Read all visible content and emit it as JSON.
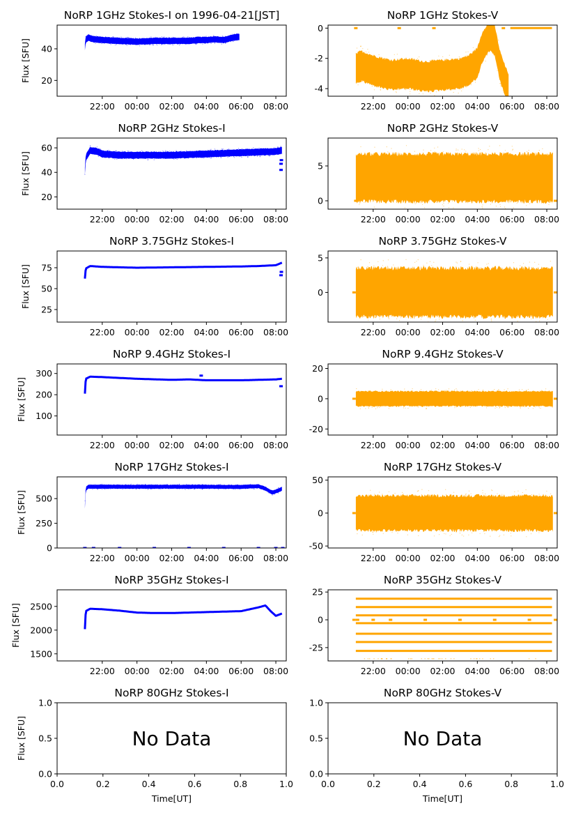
{
  "figure_title": "NoRP 1GHz Stokes-I on 1996-04-21[JST]",
  "time_ticks": [
    "22:00",
    "00:00",
    "02:00",
    "04:00",
    "06:00",
    "08:00"
  ],
  "colors": {
    "stokes_i": "#0000ff",
    "stokes_v": "#ffa500",
    "axes": "#000000"
  },
  "chart_data": [
    {
      "id": "1ghz-i",
      "type": "scatter",
      "title": "NoRP 1GHz Stokes-I on 1996-04-21[JST]",
      "ylabel": "Flux [SFU]",
      "xlabel": "",
      "xlim_hours": [
        19.4,
        32.6
      ],
      "ylim": [
        10,
        55
      ],
      "yticks": [
        20,
        40
      ],
      "color": "#0000ff",
      "series": [
        {
          "segments": [
            {
              "x": [
                21.0,
                21.05,
                21.2,
                21.5,
                22.0,
                23.0,
                24.0,
                25.0,
                26.0,
                27.0,
                27.5,
                28.0,
                28.5,
                29.0,
                29.5,
                29.9
              ],
              "y": [
                41,
                46,
                47,
                46,
                45.5,
                45,
                44.5,
                45,
                45,
                45,
                45.5,
                45.5,
                46,
                45.5,
                47,
                47.5
              ],
              "spread": 1.8
            }
          ]
        }
      ]
    },
    {
      "id": "1ghz-v",
      "type": "scatter",
      "title": "NoRP 1GHz Stokes-V",
      "ylabel": "",
      "xlabel": "",
      "xlim_hours": [
        19.4,
        32.6
      ],
      "ylim": [
        -4.5,
        0.2
      ],
      "yticks": [
        -4,
        -2,
        0
      ],
      "color": "#ffa500",
      "series": [
        {
          "segments": [
            {
              "x": [
                21.0,
                21.3,
                22.0,
                23.0,
                24.0,
                25.0,
                26.0,
                27.0,
                27.5,
                28.0,
                28.3,
                28.7,
                29.0,
                29.3,
                29.6,
                29.8
              ],
              "y": [
                -2.7,
                -2.5,
                -2.8,
                -3.1,
                -3.0,
                -3.2,
                -3.1,
                -3.0,
                -2.8,
                -2.3,
                -1.2,
                -0.5,
                -0.8,
                -2.5,
                -3.5,
                -4.0
              ],
              "spread": 0.9
            },
            {
              "x": [
                29.9,
                32.3
              ],
              "y": [
                0,
                0
              ],
              "spread": 0.04
            },
            {
              "points": [
                [
                  21.0,
                  0
                ],
                [
                  23.5,
                  0
                ],
                [
                  25.5,
                  0
                ],
                [
                  29.5,
                  0
                ]
              ]
            }
          ]
        }
      ]
    },
    {
      "id": "2ghz-i",
      "type": "scatter",
      "title": "NoRP 2GHz Stokes-I",
      "ylabel": "Flux [SFU]",
      "xlabel": "",
      "xlim_hours": [
        19.4,
        32.6
      ],
      "ylim": [
        10,
        68
      ],
      "yticks": [
        20,
        40,
        60
      ],
      "color": "#0000ff",
      "series": [
        {
          "segments": [
            {
              "x": [
                21.0,
                21.05,
                21.3,
                21.7,
                22.0,
                23.0,
                24.0,
                26.0,
                28.0,
                30.0,
                31.0,
                32.0,
                32.35
              ],
              "y": [
                41,
                52,
                58,
                57,
                55,
                54,
                54,
                54,
                55,
                56,
                56.5,
                57,
                58
              ],
              "spread": 2.5
            },
            {
              "points": [
                [
                  32.3,
                  42
                ],
                [
                  32.3,
                  47
                ],
                [
                  32.32,
                  50
                ]
              ]
            }
          ]
        }
      ]
    },
    {
      "id": "2ghz-v",
      "type": "scatter",
      "title": "NoRP 2GHz Stokes-V",
      "ylabel": "",
      "xlabel": "",
      "xlim_hours": [
        19.4,
        32.6
      ],
      "ylim": [
        -1.2,
        9
      ],
      "yticks": [
        0,
        5
      ],
      "color": "#ffa500",
      "series": [
        {
          "segments": [
            {
              "x": [
                21.0,
                32.35
              ],
              "y": [
                3.3,
                3.3
              ],
              "spread": 3.1
            },
            {
              "points": [
                [
                  21.0,
                  0
                ],
                [
                  23.5,
                  0
                ],
                [
                  25.5,
                  0
                ],
                [
                  27.5,
                  0
                ],
                [
                  29.5,
                  0
                ],
                [
                  32.5,
                  0
                ]
              ]
            }
          ]
        }
      ]
    },
    {
      "id": "375ghz-i",
      "type": "scatter",
      "title": "NoRP 3.75GHz Stokes-I",
      "ylabel": "Flux [SFU]",
      "xlabel": "",
      "xlim_hours": [
        19.4,
        32.6
      ],
      "ylim": [
        10,
        95
      ],
      "yticks": [
        25,
        50,
        75
      ],
      "color": "#0000ff",
      "series": [
        {
          "segments": [
            {
              "x": [
                21.0,
                21.05,
                21.3,
                22.0,
                24.0,
                26.0,
                28.0,
                30.0,
                31.0,
                32.0,
                32.35
              ],
              "y": [
                62,
                74,
                77,
                76,
                75,
                75.5,
                76,
                76.5,
                77,
                78,
                81
              ],
              "spread": 1.5
            },
            {
              "points": [
                [
                  32.3,
                  66
                ],
                [
                  32.32,
                  70
                ]
              ]
            }
          ]
        }
      ]
    },
    {
      "id": "375ghz-v",
      "type": "scatter",
      "title": "NoRP 3.75GHz Stokes-V",
      "ylabel": "",
      "xlabel": "",
      "xlim_hours": [
        19.4,
        32.6
      ],
      "ylim": [
        -4.3,
        6
      ],
      "yticks": [
        0,
        5
      ],
      "color": "#ffa500",
      "series": [
        {
          "segments": [
            {
              "x": [
                21.0,
                32.35
              ],
              "y": [
                0,
                0
              ],
              "spread": 3.2
            },
            {
              "points": [
                [
                  20.9,
                  0
                ],
                [
                  32.5,
                  0
                ]
              ]
            }
          ]
        }
      ]
    },
    {
      "id": "94ghz-i",
      "type": "scatter",
      "title": "NoRP 9.4GHz Stokes-I",
      "ylabel": "Flux [SFU]",
      "xlabel": "",
      "xlim_hours": [
        19.4,
        32.6
      ],
      "ylim": [
        10,
        345
      ],
      "yticks": [
        100,
        200,
        300
      ],
      "color": "#0000ff",
      "series": [
        {
          "segments": [
            {
              "x": [
                21.0,
                21.05,
                21.3,
                22.0,
                24.0,
                26.0,
                27.0,
                28.0,
                30.0,
                32.0,
                32.35
              ],
              "y": [
                205,
                275,
                285,
                283,
                275,
                270,
                272,
                268,
                268,
                272,
                275
              ],
              "spread": 6
            },
            {
              "points": [
                [
                  27.7,
                  290
                ],
                [
                  32.3,
                  240
                ]
              ]
            }
          ]
        }
      ]
    },
    {
      "id": "94ghz-v",
      "type": "scatter",
      "title": "NoRP 9.4GHz Stokes-V",
      "ylabel": "",
      "xlabel": "",
      "xlim_hours": [
        19.4,
        32.6
      ],
      "ylim": [
        -24,
        23
      ],
      "yticks": [
        -20,
        0,
        20
      ],
      "color": "#ffa500",
      "series": [
        {
          "segments": [
            {
              "x": [
                21.0,
                32.35
              ],
              "y": [
                0,
                0
              ],
              "spread": 4.5
            },
            {
              "points": [
                [
                  20.9,
                  0
                ],
                [
                  32.5,
                  0
                ]
              ]
            }
          ]
        }
      ]
    },
    {
      "id": "17ghz-i",
      "type": "scatter",
      "title": "NoRP 17GHz Stokes-I",
      "ylabel": "Flux [SFU]",
      "xlabel": "",
      "xlim_hours": [
        19.4,
        32.6
      ],
      "ylim": [
        0,
        720
      ],
      "yticks": [
        0,
        250,
        500
      ],
      "color": "#0000ff",
      "series": [
        {
          "segments": [
            {
              "x": [
                21.0,
                21.05,
                21.2,
                22.0,
                24.0,
                26.0,
                28.0,
                30.0,
                31.0,
                31.4,
                31.8,
                32.1,
                32.35
              ],
              "y": [
                420,
                600,
                620,
                620,
                620,
                620,
                620,
                618,
                625,
                600,
                560,
                580,
                600
              ],
              "spread": 18
            },
            {
              "points": [
                [
                  21.0,
                  0
                ],
                [
                  21.5,
                  0
                ],
                [
                  23.0,
                  0
                ],
                [
                  25.0,
                  0
                ],
                [
                  27.0,
                  0
                ],
                [
                  29.0,
                  0
                ],
                [
                  31.0,
                  0
                ],
                [
                  32.0,
                  0
                ],
                [
                  32.4,
                  0
                ]
              ]
            }
          ]
        }
      ]
    },
    {
      "id": "17ghz-v",
      "type": "scatter",
      "title": "NoRP 17GHz Stokes-V",
      "ylabel": "",
      "xlabel": "",
      "xlim_hours": [
        19.4,
        32.6
      ],
      "ylim": [
        -53,
        55
      ],
      "yticks": [
        -50,
        0,
        50
      ],
      "color": "#ffa500",
      "series": [
        {
          "segments": [
            {
              "x": [
                21.0,
                32.35
              ],
              "y": [
                0,
                0
              ],
              "spread": 24
            },
            {
              "points": [
                [
                  20.9,
                  0
                ],
                [
                  32.5,
                  0
                ]
              ]
            }
          ]
        }
      ]
    },
    {
      "id": "35ghz-i",
      "type": "scatter",
      "title": "NoRP 35GHz Stokes-I",
      "ylabel": "Flux [SFU]",
      "xlabel": "",
      "xlim_hours": [
        19.4,
        32.6
      ],
      "ylim": [
        1350,
        2850
      ],
      "yticks": [
        1500,
        2000,
        2500
      ],
      "color": "#0000ff",
      "series": [
        {
          "segments": [
            {
              "x": [
                21.0,
                21.05,
                21.3,
                22.0,
                23.0,
                24.0,
                25.0,
                26.0,
                27.0,
                28.0,
                29.0,
                30.0,
                30.5,
                31.0,
                31.4,
                31.7,
                32.0,
                32.35
              ],
              "y": [
                2020,
                2400,
                2450,
                2440,
                2410,
                2370,
                2360,
                2360,
                2370,
                2380,
                2390,
                2400,
                2440,
                2480,
                2520,
                2400,
                2300,
                2350
              ],
              "spread": 25
            }
          ]
        }
      ]
    },
    {
      "id": "35ghz-v",
      "type": "scatter",
      "title": "NoRP 35GHz Stokes-V",
      "ylabel": "",
      "xlabel": "",
      "xlim_hours": [
        19.4,
        32.6
      ],
      "ylim": [
        -37,
        27
      ],
      "yticks": [
        -25,
        0,
        25
      ],
      "color": "#ffa500",
      "bands": [
        19,
        11.5,
        4,
        -3,
        -12.5,
        -20,
        -28
      ],
      "band_range_hours": [
        21.0,
        32.3
      ],
      "series": [
        {
          "segments": [
            {
              "points": [
                [
                  20.9,
                  0
                ],
                [
                  21.1,
                  0
                ],
                [
                  22.0,
                  0
                ],
                [
                  23.0,
                  0
                ],
                [
                  25.0,
                  0
                ],
                [
                  27.0,
                  0
                ],
                [
                  29.0,
                  0
                ],
                [
                  31.0,
                  0
                ],
                [
                  32.5,
                  0
                ]
              ]
            }
          ]
        }
      ]
    },
    {
      "id": "80ghz-i",
      "type": "scatter",
      "title": "NoRP 80GHz Stokes-I",
      "ylabel": "Flux [SFU]",
      "xlabel": "Time[UT]",
      "empty_text": "No Data",
      "xlim": [
        0,
        1
      ],
      "ylim": [
        0,
        1
      ],
      "xticks": [
        "0.0",
        "0.2",
        "0.4",
        "0.6",
        "0.8",
        "1.0"
      ],
      "yticks": [
        "0.0",
        "0.5",
        "1.0"
      ]
    },
    {
      "id": "80ghz-v",
      "type": "scatter",
      "title": "NoRP 80GHz Stokes-V",
      "ylabel": "",
      "xlabel": "Time[UT]",
      "empty_text": "No Data",
      "xlim": [
        0,
        1
      ],
      "ylim": [
        0,
        1
      ],
      "xticks": [
        "0.0",
        "0.2",
        "0.4",
        "0.6",
        "0.8",
        "1.0"
      ],
      "yticks": [
        "0.0",
        "0.5",
        "1.0"
      ]
    }
  ]
}
